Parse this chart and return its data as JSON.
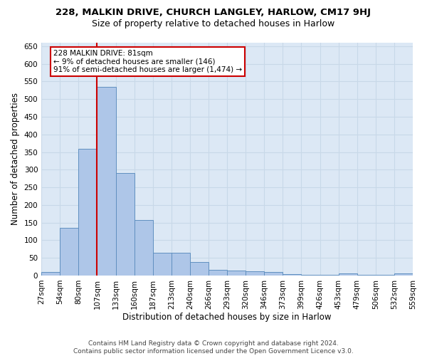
{
  "title1": "228, MALKIN DRIVE, CHURCH LANGLEY, HARLOW, CM17 9HJ",
  "title2": "Size of property relative to detached houses in Harlow",
  "xlabel": "Distribution of detached houses by size in Harlow",
  "ylabel": "Number of detached properties",
  "bar_values": [
    10,
    135,
    360,
    535,
    290,
    157,
    65,
    65,
    38,
    17,
    15,
    13,
    9,
    4,
    1,
    1,
    5,
    1,
    1,
    5
  ],
  "bar_labels": [
    "27sqm",
    "54sqm",
    "80sqm",
    "107sqm",
    "133sqm",
    "160sqm",
    "187sqm",
    "213sqm",
    "240sqm",
    "266sqm",
    "293sqm",
    "320sqm",
    "346sqm",
    "373sqm",
    "399sqm",
    "426sqm",
    "453sqm",
    "479sqm",
    "506sqm",
    "532sqm",
    "559sqm"
  ],
  "bar_color": "#aec6e8",
  "bar_edge_color": "#6090c0",
  "vline_color": "#cc0000",
  "vline_x": 2.5,
  "annotation_text": "228 MALKIN DRIVE: 81sqm\n← 9% of detached houses are smaller (146)\n91% of semi-detached houses are larger (1,474) →",
  "annotation_box_edge_color": "#cc0000",
  "ylim_max": 660,
  "yticks": [
    0,
    50,
    100,
    150,
    200,
    250,
    300,
    350,
    400,
    450,
    500,
    550,
    600,
    650
  ],
  "grid_color": "#c8d8e8",
  "plot_bg_color": "#dce8f5",
  "fig_bg_color": "#ffffff",
  "footer_line1": "Contains HM Land Registry data © Crown copyright and database right 2024.",
  "footer_line2": "Contains public sector information licensed under the Open Government Licence v3.0.",
  "title1_fontsize": 9.5,
  "title2_fontsize": 9.0,
  "ylabel_fontsize": 8.5,
  "xlabel_fontsize": 8.5,
  "tick_fontsize": 7.5,
  "annot_fontsize": 7.5,
  "footer_fontsize": 6.5
}
